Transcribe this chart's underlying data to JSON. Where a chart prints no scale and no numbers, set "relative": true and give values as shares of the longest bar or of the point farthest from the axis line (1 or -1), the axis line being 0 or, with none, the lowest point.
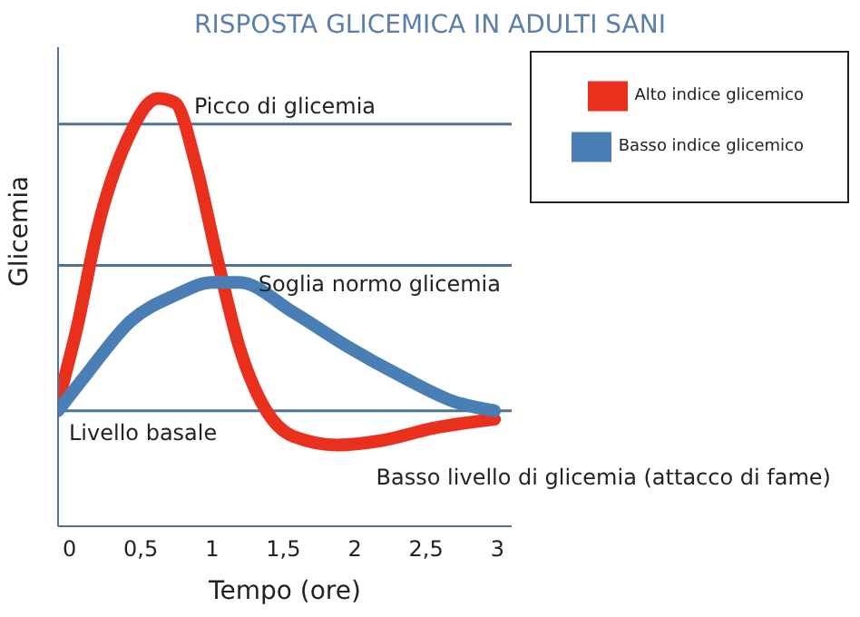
{
  "chart_data": {
    "type": "line",
    "title": "RISPOSTA GLICEMICA IN ADULTI SANI",
    "xlabel": "Tempo (ore)",
    "ylabel": "Glicemia",
    "relative": true,
    "xlim": [
      -0.08,
      3.1
    ],
    "xticks": [
      0,
      {
        "value": 0.5,
        "label": "0,5"
      },
      1,
      {
        "value": 1.5,
        "label": "1,5"
      },
      2,
      {
        "value": 2.5,
        "label": "2,5"
      },
      3
    ],
    "series": [
      {
        "name": "Alto indice glicemico",
        "color": "#e8301c",
        "x": [
          -0.08,
          0.05,
          0.2,
          0.4,
          0.62,
          0.74,
          0.89,
          1.04,
          1.19,
          1.38,
          1.57,
          1.88,
          2.18,
          2.56,
          2.98
        ],
        "values": [
          0.29,
          0.46,
          0.7,
          0.9,
          1.0,
          0.99,
          0.84,
          0.62,
          0.42,
          0.27,
          0.21,
          0.19,
          0.2,
          0.23,
          0.25
        ]
      },
      {
        "name": "Basso indice glicemico",
        "color": "#4a7fb5",
        "x": [
          -0.08,
          0.13,
          0.43,
          0.74,
          1.0,
          1.19,
          1.57,
          1.95,
          2.33,
          2.71,
          2.98
        ],
        "values": [
          0.27,
          0.36,
          0.48,
          0.54,
          0.57,
          0.57,
          0.5,
          0.42,
          0.35,
          0.29,
          0.27
        ]
      }
    ],
    "ref_lines": [
      {
        "axis": "y",
        "value": 0.94,
        "label": "Picco di glicemia",
        "color": "#4f7396"
      },
      {
        "axis": "y",
        "value": 0.61,
        "label": "Soglia normo glicemia",
        "color": "#4f7396"
      },
      {
        "axis": "y",
        "value": 0.27,
        "label": "Livello basale",
        "color": "#4f7396"
      }
    ],
    "annotations": [
      "Basso livello di glicemia (attacco di fame)"
    ],
    "legend": "top right",
    "marker": "none",
    "line_style": "solid",
    "grid": false
  }
}
